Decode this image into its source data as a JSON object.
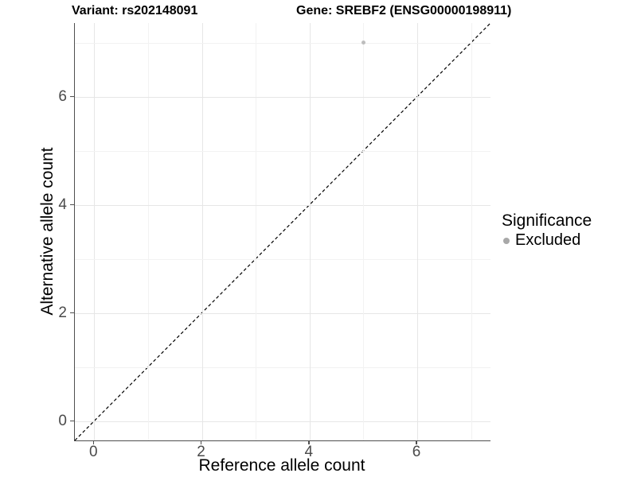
{
  "title": {
    "variant": "Variant: rs202148091",
    "gene": "Gene: SREBF2 (ENSG00000198911)"
  },
  "chart_data": {
    "type": "scatter",
    "title": "Variant: rs202148091 — Gene: SREBF2 (ENSG00000198911)",
    "xlabel": "Reference allele count",
    "ylabel": "Alternative allele count",
    "xlim": [
      -0.36,
      7.36
    ],
    "ylim": [
      -0.36,
      7.36
    ],
    "x_ticks": [
      0,
      2,
      4,
      6
    ],
    "y_ticks": [
      0,
      2,
      4,
      6
    ],
    "gridline_values": [
      0,
      1,
      2,
      3,
      4,
      5,
      6,
      7
    ],
    "grid": "on",
    "reference_line": {
      "label": "y = x",
      "style": "dashed",
      "color": "#000000"
    },
    "series": [
      {
        "name": "Excluded",
        "color": "#bdbdbd",
        "points": [
          {
            "x": 5,
            "y": 7
          }
        ]
      }
    ],
    "legend": {
      "title": "Significance",
      "position": "right",
      "items": [
        {
          "label": "Excluded",
          "color": "#a8a8a8"
        }
      ]
    }
  },
  "colors": {
    "grid_major": "#e6e6e6",
    "grid_minor": "#f2f2f2",
    "axis_line": "#4f4f4f",
    "tick_text": "#4a4a4a",
    "point": "#bdbdbd"
  }
}
